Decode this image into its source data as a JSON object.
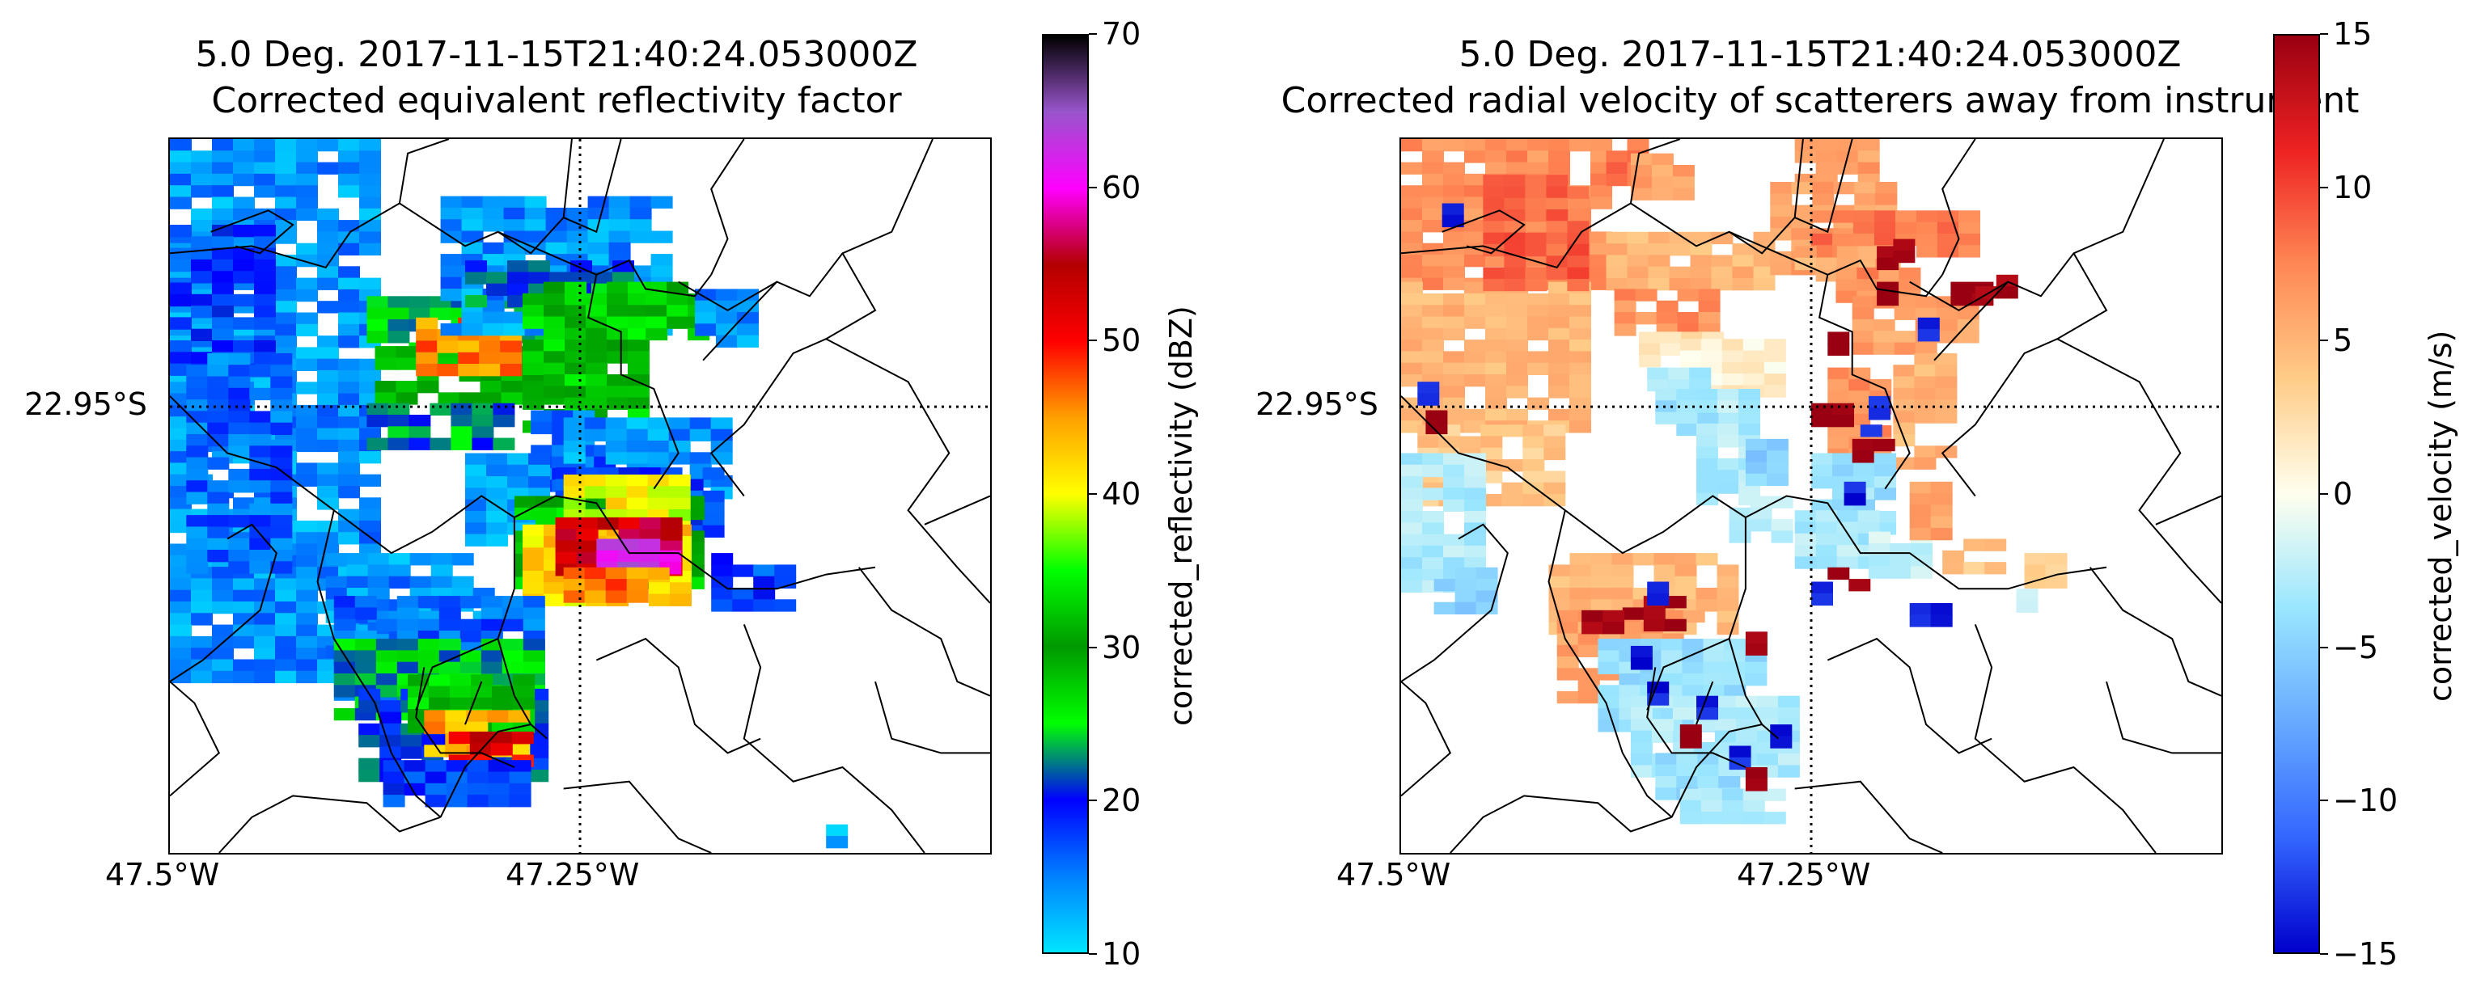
{
  "chart_data": [
    {
      "type": "heatmap",
      "title": "5.0 Deg. 2017-11-15T21:40:24.053000Z",
      "subtitle": "Corrected equivalent reflectivity factor",
      "xlabel": "",
      "ylabel": "",
      "x_ticks": [
        "47.5°W",
        "47.25°W"
      ],
      "y_ticks": [
        "22.95°S"
      ],
      "colorbar": {
        "label": "corrected_reflectivity (dBZ)",
        "range": [
          10,
          70
        ],
        "ticks": [
          "10",
          "20",
          "30",
          "40",
          "50",
          "60",
          "70"
        ],
        "colors": [
          "#00e5ff",
          "#0080ff",
          "#0000ff",
          "#00ff00",
          "#009900",
          "#00ff00",
          "#ffff00",
          "#ffa000",
          "#ff0000",
          "#b40000",
          "#ff00ff",
          "#9955cc",
          "#000000"
        ]
      },
      "grid": "dotted at 47.25°W and 22.95°S",
      "cells": [
        [
          0.0,
          0.0,
          0.25,
          0.75,
          14
        ],
        [
          0.0,
          0.12,
          0.12,
          0.2,
          18
        ],
        [
          0.02,
          0.3,
          0.12,
          0.3,
          16
        ],
        [
          0.24,
          0.22,
          0.24,
          0.08,
          24
        ],
        [
          0.25,
          0.29,
          0.27,
          0.07,
          30
        ],
        [
          0.3,
          0.25,
          0.12,
          0.08,
          46
        ],
        [
          0.24,
          0.37,
          0.16,
          0.06,
          22
        ],
        [
          0.33,
          0.08,
          0.26,
          0.18,
          14
        ],
        [
          0.36,
          0.17,
          0.18,
          0.05,
          22
        ],
        [
          0.43,
          0.2,
          0.15,
          0.2,
          28
        ],
        [
          0.44,
          0.38,
          0.09,
          0.1,
          16
        ],
        [
          0.58,
          0.2,
          0.06,
          0.08,
          28
        ],
        [
          0.64,
          0.21,
          0.06,
          0.07,
          14
        ],
        [
          0.36,
          0.44,
          0.09,
          0.12,
          14
        ],
        [
          0.48,
          0.39,
          0.19,
          0.11,
          14
        ],
        [
          0.47,
          0.46,
          0.2,
          0.11,
          18
        ],
        [
          0.42,
          0.5,
          0.23,
          0.12,
          32
        ],
        [
          0.48,
          0.47,
          0.15,
          0.09,
          40
        ],
        [
          0.43,
          0.54,
          0.2,
          0.1,
          42
        ],
        [
          0.47,
          0.53,
          0.14,
          0.07,
          54
        ],
        [
          0.52,
          0.56,
          0.08,
          0.04,
          62
        ],
        [
          0.48,
          0.6,
          0.12,
          0.04,
          46
        ],
        [
          0.66,
          0.58,
          0.1,
          0.08,
          18
        ],
        [
          0.19,
          0.58,
          0.2,
          0.14,
          14
        ],
        [
          0.2,
          0.64,
          0.24,
          0.14,
          16
        ],
        [
          0.2,
          0.7,
          0.24,
          0.1,
          24
        ],
        [
          0.23,
          0.77,
          0.23,
          0.12,
          20
        ],
        [
          0.29,
          0.75,
          0.14,
          0.07,
          32
        ],
        [
          0.31,
          0.8,
          0.12,
          0.06,
          44
        ],
        [
          0.34,
          0.83,
          0.08,
          0.04,
          52
        ],
        [
          0.26,
          0.87,
          0.17,
          0.05,
          18
        ],
        [
          0.8,
          0.96,
          0.02,
          0.02,
          12
        ]
      ],
      "borders": [
        "M0.05,0.13 L0.12,0.10 L0.15,0.12 L0.11,0.16 L0.08,0.15",
        "M0.00,0.16 L0.10,0.15 L0.19,0.18 L0.22,0.13 L0.28,0.09 L0.29,0.02 L0.34,0.00",
        "M0.28,0.09 L0.36,0.15 L0.40,0.13 L0.44,0.16 L0.48,0.11 L0.49,0.00",
        "M0.40,0.13 L0.52,0.19 L0.56,0.17 L0.58,0.21 L0.64,0.22 L0.66,0.19",
        "M0.52,0.19 L0.51,0.25 L0.55,0.27 L0.55,0.33 L0.59,0.35 L0.62,0.44 L0.59,0.49",
        "M0.48,0.11 L0.52,0.13 L0.55,0.00",
        "M0.66,0.19 L0.68,0.14 L0.66,0.07 L0.70,0.00",
        "M0.65,0.31 L0.69,0.26 L0.74,0.20 L0.78,0.22 L0.82,0.16 L0.88,0.13 L0.93,0.00",
        "M0.80,0.28 L0.90,0.34 L0.95,0.44 L0.90,0.52 L0.96,0.60 L1.00,0.65",
        "M0.82,0.16 L0.86,0.24 L0.80,0.28 L0.76,0.30 L0.70,0.40 L0.66,0.44 L0.70,0.50",
        "M0.00,0.36 L0.07,0.44 L0.13,0.46 L0.20,0.52 L0.27,0.58 L0.32,0.55 L0.38,0.50 L0.42,0.53",
        "M0.42,0.53 L0.47,0.50 L0.52,0.51 L0.56,0.58 L0.62,0.58 L0.68,0.63 L0.74,0.63 L0.80,0.61 L0.86,0.60",
        "M0.92,0.54 L0.96,0.52 L1.00,0.50",
        "M0.07,0.56 L0.10,0.54 L0.13,0.58 L0.11,0.66 L0.04,0.73 L0.00,0.76",
        "M0.00,0.76 L0.03,0.79 L0.06,0.86 L0.00,0.92",
        "M0.20,0.52 L0.18,0.62 L0.20,0.70 L0.25,0.79 L0.27,0.86 L0.30,0.92 L0.33,0.95",
        "M0.33,0.95 L0.36,0.88 L0.40,0.83 L0.44,0.82 L0.46,0.84",
        "M0.42,0.53 L0.42,0.63 L0.40,0.70 L0.42,0.78 L0.44,0.82",
        "M0.30,0.80 L0.32,0.74 L0.36,0.72 L0.40,0.70",
        "M0.31,0.74 L0.30,0.81 L0.33,0.86 L0.38,0.86 L0.42,0.88",
        "M0.33,0.95 L0.28,0.97 L0.24,0.93 L0.15,0.92 L0.10,0.95 L0.06,1.00",
        "M0.48,0.91 L0.56,0.90 L0.62,0.98 L0.66,1.00",
        "M0.70,0.68 L0.72,0.74 L0.70,0.84 L0.76,0.90 L0.82,0.88 L0.88,0.94 L0.92,1.00",
        "M0.84,0.60 L0.88,0.66 L0.94,0.70 L0.96,0.76 L1.00,0.78",
        "M0.52,0.73 L0.58,0.70 L0.62,0.74 L0.64,0.82 L0.68,0.86 L0.72,0.84",
        "M0.86,0.76 L0.88,0.84 L0.94,0.86 L1.00,0.86",
        "M0.62,0.20 L0.68,0.24 L0.74,0.20",
        "M0.36,0.82 L0.38,0.76"
      ]
    },
    {
      "type": "heatmap",
      "title": "5.0 Deg. 2017-11-15T21:40:24.053000Z",
      "subtitle": "Corrected radial velocity of scatterers away from instrument",
      "xlabel": "",
      "ylabel": "",
      "x_ticks": [
        "47.5°W",
        "47.25°W"
      ],
      "y_ticks": [
        "22.95°S"
      ],
      "colorbar": {
        "label": "corrected_velocity (m/s)",
        "range": [
          -15,
          15
        ],
        "ticks": [
          "−15",
          "−10",
          "−5",
          "0",
          "5",
          "10",
          "15"
        ],
        "colors": [
          "#0000cc",
          "#3366ff",
          "#66aaff",
          "#99e6ff",
          "#ffffee",
          "#ffcc88",
          "#ff8855",
          "#ee2222",
          "#990011"
        ]
      },
      "grid": "dotted at 47.25°W and 22.95°S",
      "cells": [
        [
          0.0,
          0.0,
          0.25,
          0.2,
          7
        ],
        [
          0.0,
          0.2,
          0.22,
          0.2,
          5
        ],
        [
          0.02,
          0.4,
          0.16,
          0.1,
          4
        ],
        [
          0.1,
          0.05,
          0.12,
          0.15,
          9
        ],
        [
          0.25,
          0.0,
          0.05,
          0.05,
          8
        ],
        [
          0.0,
          0.44,
          0.08,
          0.18,
          -3
        ],
        [
          0.04,
          0.6,
          0.06,
          0.05,
          -5
        ],
        [
          0.28,
          0.02,
          0.06,
          0.05,
          6
        ],
        [
          0.05,
          0.09,
          0.02,
          0.02,
          -14
        ],
        [
          0.02,
          0.34,
          0.02,
          0.02,
          -14
        ],
        [
          0.03,
          0.38,
          0.02,
          0.02,
          15
        ],
        [
          0.25,
          0.13,
          0.2,
          0.08,
          5
        ],
        [
          0.26,
          0.21,
          0.12,
          0.06,
          7
        ],
        [
          0.29,
          0.27,
          0.08,
          0.04,
          2
        ],
        [
          0.34,
          0.28,
          0.12,
          0.08,
          1
        ],
        [
          0.3,
          0.32,
          0.06,
          0.03,
          -3
        ],
        [
          0.31,
          0.35,
          0.08,
          0.05,
          -4
        ],
        [
          0.36,
          0.35,
          0.06,
          0.15,
          -3
        ],
        [
          0.42,
          0.42,
          0.03,
          0.06,
          -5
        ],
        [
          0.4,
          0.5,
          0.06,
          0.06,
          -2
        ],
        [
          0.48,
          0.0,
          0.08,
          0.05,
          6
        ],
        [
          0.45,
          0.06,
          0.15,
          0.12,
          6
        ],
        [
          0.5,
          0.1,
          0.18,
          0.06,
          8
        ],
        [
          0.48,
          0.15,
          0.12,
          0.05,
          5
        ],
        [
          0.53,
          0.18,
          0.08,
          0.04,
          7
        ],
        [
          0.55,
          0.22,
          0.14,
          0.08,
          6
        ],
        [
          0.6,
          0.3,
          0.06,
          0.15,
          5
        ],
        [
          0.52,
          0.32,
          0.06,
          0.12,
          7
        ],
        [
          0.5,
          0.44,
          0.1,
          0.1,
          -4
        ],
        [
          0.48,
          0.52,
          0.1,
          0.08,
          -3
        ],
        [
          0.57,
          0.55,
          0.06,
          0.06,
          -2
        ],
        [
          0.62,
          0.48,
          0.04,
          0.08,
          6
        ],
        [
          0.54,
          0.48,
          0.02,
          0.02,
          -14
        ],
        [
          0.55,
          0.42,
          0.03,
          0.03,
          15
        ],
        [
          0.56,
          0.4,
          0.02,
          0.02,
          -14
        ],
        [
          0.58,
          0.15,
          0.02,
          0.03,
          15
        ],
        [
          0.6,
          0.14,
          0.02,
          0.02,
          15
        ],
        [
          0.58,
          0.2,
          0.02,
          0.02,
          15
        ],
        [
          0.63,
          0.25,
          0.02,
          0.02,
          -14
        ],
        [
          0.67,
          0.2,
          0.03,
          0.02,
          15
        ],
        [
          0.7,
          0.19,
          0.05,
          0.02,
          15
        ],
        [
          0.52,
          0.27,
          0.02,
          0.02,
          15
        ],
        [
          0.5,
          0.37,
          0.03,
          0.03,
          15
        ],
        [
          0.57,
          0.36,
          0.02,
          0.02,
          -14
        ],
        [
          0.52,
          0.6,
          0.04,
          0.02,
          15
        ],
        [
          0.5,
          0.62,
          0.02,
          0.02,
          -14
        ],
        [
          0.62,
          0.65,
          0.03,
          0.02,
          -14
        ],
        [
          0.66,
          0.56,
          0.06,
          0.04,
          4
        ],
        [
          0.76,
          0.58,
          0.04,
          0.04,
          4
        ],
        [
          0.75,
          0.63,
          0.02,
          0.02,
          -3
        ],
        [
          0.18,
          0.58,
          0.22,
          0.1,
          5
        ],
        [
          0.19,
          0.66,
          0.16,
          0.12,
          6
        ],
        [
          0.27,
          0.64,
          0.06,
          0.04,
          15
        ],
        [
          0.22,
          0.66,
          0.03,
          0.02,
          15
        ],
        [
          0.3,
          0.62,
          0.02,
          0.02,
          -14
        ],
        [
          0.24,
          0.7,
          0.2,
          0.12,
          -4
        ],
        [
          0.28,
          0.78,
          0.18,
          0.1,
          -3
        ],
        [
          0.31,
          0.86,
          0.1,
          0.05,
          -4
        ],
        [
          0.34,
          0.91,
          0.12,
          0.04,
          -3
        ],
        [
          0.3,
          0.76,
          0.02,
          0.02,
          -14
        ],
        [
          0.34,
          0.82,
          0.02,
          0.02,
          15
        ],
        [
          0.36,
          0.78,
          0.02,
          0.02,
          -14
        ],
        [
          0.4,
          0.85,
          0.02,
          0.02,
          -14
        ],
        [
          0.42,
          0.88,
          0.02,
          0.02,
          15
        ],
        [
          0.45,
          0.82,
          0.02,
          0.02,
          -14
        ],
        [
          0.42,
          0.69,
          0.02,
          0.02,
          15
        ],
        [
          0.28,
          0.71,
          0.02,
          0.02,
          -14
        ]
      ]
    }
  ]
}
